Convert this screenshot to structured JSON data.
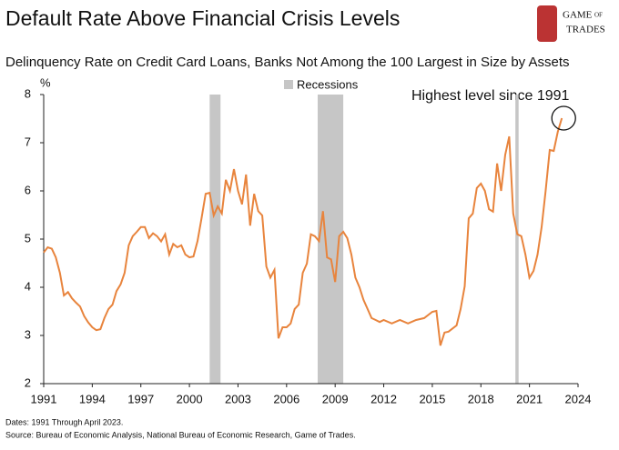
{
  "chart_data": {
    "type": "line",
    "title": "Default Rate Above Financial Crisis Levels",
    "subtitle": "Delinquency Rate on Credit Card Loans, Banks Not Among the 100 Largest in Size by Assets",
    "y_label": "%",
    "logo": [
      "GAME",
      "OF",
      "TRADES"
    ],
    "annotation": "Highest level since 1991",
    "notes": [
      "Dates: 1991 Through April 2023.",
      "Source: Bureau of Economic Analysis, National Bureau of Economic Research, Game of Trades."
    ],
    "x": [
      1991,
      1991.25,
      1991.5,
      1991.75,
      1992,
      1992.25,
      1992.5,
      1992.75,
      1993,
      1993.25,
      1993.5,
      1993.75,
      1994,
      1994.25,
      1994.5,
      1994.75,
      1995,
      1995.25,
      1995.5,
      1995.75,
      1996,
      1996.25,
      1996.5,
      1996.75,
      1997,
      1997.25,
      1997.5,
      1997.75,
      1998,
      1998.25,
      1998.5,
      1998.75,
      1999,
      1999.25,
      1999.5,
      1999.75,
      2000,
      2000.25,
      2000.5,
      2000.75,
      2001,
      2001.25,
      2001.5,
      2001.75,
      2002,
      2002.25,
      2002.5,
      2002.75,
      2003,
      2003.25,
      2003.5,
      2003.75,
      2004,
      2004.25,
      2004.5,
      2004.75,
      2005,
      2005.25,
      2005.5,
      2005.75,
      2006,
      2006.25,
      2006.5,
      2006.75,
      2007,
      2007.25,
      2007.5,
      2007.75,
      2008,
      2008.25,
      2008.5,
      2008.75,
      2009,
      2009.25,
      2009.5,
      2009.75,
      2010,
      2010.25,
      2010.5,
      2010.75,
      2011,
      2011.25,
      2011.5,
      2011.75,
      2012,
      2012.5,
      2013,
      2013.5,
      2014,
      2014.5,
      2015,
      2015.25,
      2015.5,
      2015.75,
      2016,
      2016.5,
      2016.75,
      2017,
      2017.25,
      2017.5,
      2017.75,
      2018,
      2018.25,
      2018.5,
      2018.75,
      2019,
      2019.25,
      2019.5,
      2019.75,
      2020,
      2020.25,
      2020.5,
      2020.75,
      2021,
      2021.25,
      2021.5,
      2021.75,
      2022,
      2022.25,
      2022.5,
      2022.75,
      2023
    ],
    "series": [
      {
        "name": "Delinquency Rate",
        "color": "#e8843d",
        "values": [
          4.72,
          4.83,
          4.8,
          4.62,
          4.3,
          3.83,
          3.9,
          3.77,
          3.68,
          3.6,
          3.4,
          3.27,
          3.17,
          3.11,
          3.13,
          3.36,
          3.55,
          3.64,
          3.92,
          4.06,
          4.3,
          4.87,
          5.06,
          5.15,
          5.25,
          5.25,
          5.02,
          5.12,
          5.06,
          4.95,
          5.1,
          4.68,
          4.9,
          4.83,
          4.87,
          4.68,
          4.62,
          4.64,
          4.96,
          5.43,
          5.94,
          5.96,
          5.49,
          5.68,
          5.53,
          6.23,
          6.0,
          6.45,
          6.0,
          5.72,
          6.34,
          5.28,
          5.94,
          5.58,
          5.49,
          4.43,
          4.2,
          4.36,
          2.94,
          3.17,
          3.17,
          3.25,
          3.55,
          3.64,
          4.3,
          4.49,
          5.1,
          5.06,
          4.96,
          5.58,
          4.62,
          4.58,
          4.11,
          5.06,
          5.15,
          5.02,
          4.68,
          4.2,
          4.0,
          3.74,
          3.55,
          3.36,
          3.32,
          3.28,
          3.32,
          3.25,
          3.32,
          3.25,
          3.32,
          3.36,
          3.49,
          3.51,
          2.79,
          3.06,
          3.08,
          3.21,
          3.55,
          4.02,
          5.43,
          5.53,
          6.06,
          6.15,
          6.0,
          5.62,
          5.57,
          6.57,
          6.0,
          6.75,
          7.13,
          5.53,
          5.1,
          5.06,
          4.68,
          4.2,
          4.34,
          4.68,
          5.25,
          6.0,
          6.85,
          6.83,
          7.23,
          7.51
        ]
      }
    ],
    "recessions": {
      "name": "Recessions",
      "color": "#c6c6c6",
      "values": [
        [
          2001.25,
          2001.92
        ],
        [
          2007.92,
          2009.5
        ],
        [
          2020.13,
          2020.33
        ]
      ]
    },
    "xlim": [
      1991,
      2024
    ],
    "xticks": [
      1991,
      1994,
      1997,
      2000,
      2003,
      2006,
      2009,
      2012,
      2015,
      2018,
      2021,
      2024
    ],
    "ylim": [
      2,
      8
    ],
    "yticks": [
      2,
      3,
      4,
      5,
      6,
      7,
      8
    ]
  }
}
